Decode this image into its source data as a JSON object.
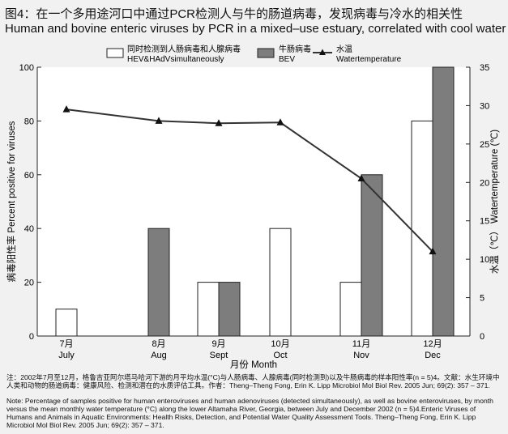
{
  "header": {
    "title_zh": "图4：在一个多用途河口中通过PCR检测人与牛的肠道病毒，发现病毒与冷水的相关性",
    "title_en": "Human and bovine enteric viruses by PCR in a mixed–use estuary, correlated with cool water"
  },
  "chart_data": {
    "type": "bar",
    "categories": [
      {
        "zh": "7月",
        "en": "July"
      },
      {
        "zh": "8月",
        "en": "Aug"
      },
      {
        "zh": "9月",
        "en": "Sept"
      },
      {
        "zh": "10月",
        "en": "Oct"
      },
      {
        "zh": "11月",
        "en": "Nov"
      },
      {
        "zh": "12月",
        "en": "Dec"
      }
    ],
    "series": [
      {
        "key": "hev",
        "name_zh": "同时检测到人肠病毒和人腺病毒",
        "name_en": "HEV&HAdVsimultaneously",
        "values": [
          10,
          null,
          20,
          40,
          20,
          80
        ],
        "color": "#ffffff"
      },
      {
        "key": "bev",
        "name_zh": "牛肠病毒",
        "name_en": "BEV",
        "values": [
          null,
          40,
          20,
          null,
          60,
          100
        ],
        "color": "#7d7d7d"
      }
    ],
    "line": {
      "name_zh": "水温",
      "name_en": "Watertemperature",
      "values": [
        29.5,
        28,
        27.7,
        27.8,
        20.5,
        11
      ]
    },
    "ylabel_zh": "病毒阳性率",
    "ylabel_en": "Percent positive for viruses",
    "y2label_zh": "水温（℃）",
    "y2label_en": "Watertemperature (℃)",
    "xlabel": "月份  Month",
    "ylim": [
      0,
      100
    ],
    "y2lim": [
      0,
      35
    ],
    "yticks": [
      0,
      20,
      40,
      60,
      80,
      100
    ],
    "y2ticks": [
      0,
      5,
      10,
      15,
      20,
      25,
      30,
      35
    ],
    "legend": "top"
  },
  "notes": {
    "zh": "注：2002年7月至12月，格鲁吉亚阿尔塔马哈河下游的月平均水温(°C)与人肠病毒、人腺病毒(同时检测到)以及牛肠病毒的样本阳性率(n = 5)4。文献：水生环境中人类和动物的肠道病毒：健康风险、检测和潜在的水质评估工具。作者：Theng–Theng Fong, Erin K. Lipp Microbiol Mol Biol Rev. 2005 Jun; 69(2): 357 – 371.",
    "en": "Note: Percentage of samples positive for human enteroviruses and human adenoviruses (detected simultaneously), as well as bovine enteroviruses, by month versus the mean monthly water temperature (°C) along the lower Altamaha River, Georgia, between July and December 2002 (n = 5)4.Enteric Viruses of Humans and Animals in Aquatic Environments: Health Risks, Detection, and Potential Water Quality Assessment Tools. Theng–Theng Fong, Erin K. Lipp Microbiol Mol Biol Rev. 2005 Jun; 69(2): 357 – 371."
  }
}
